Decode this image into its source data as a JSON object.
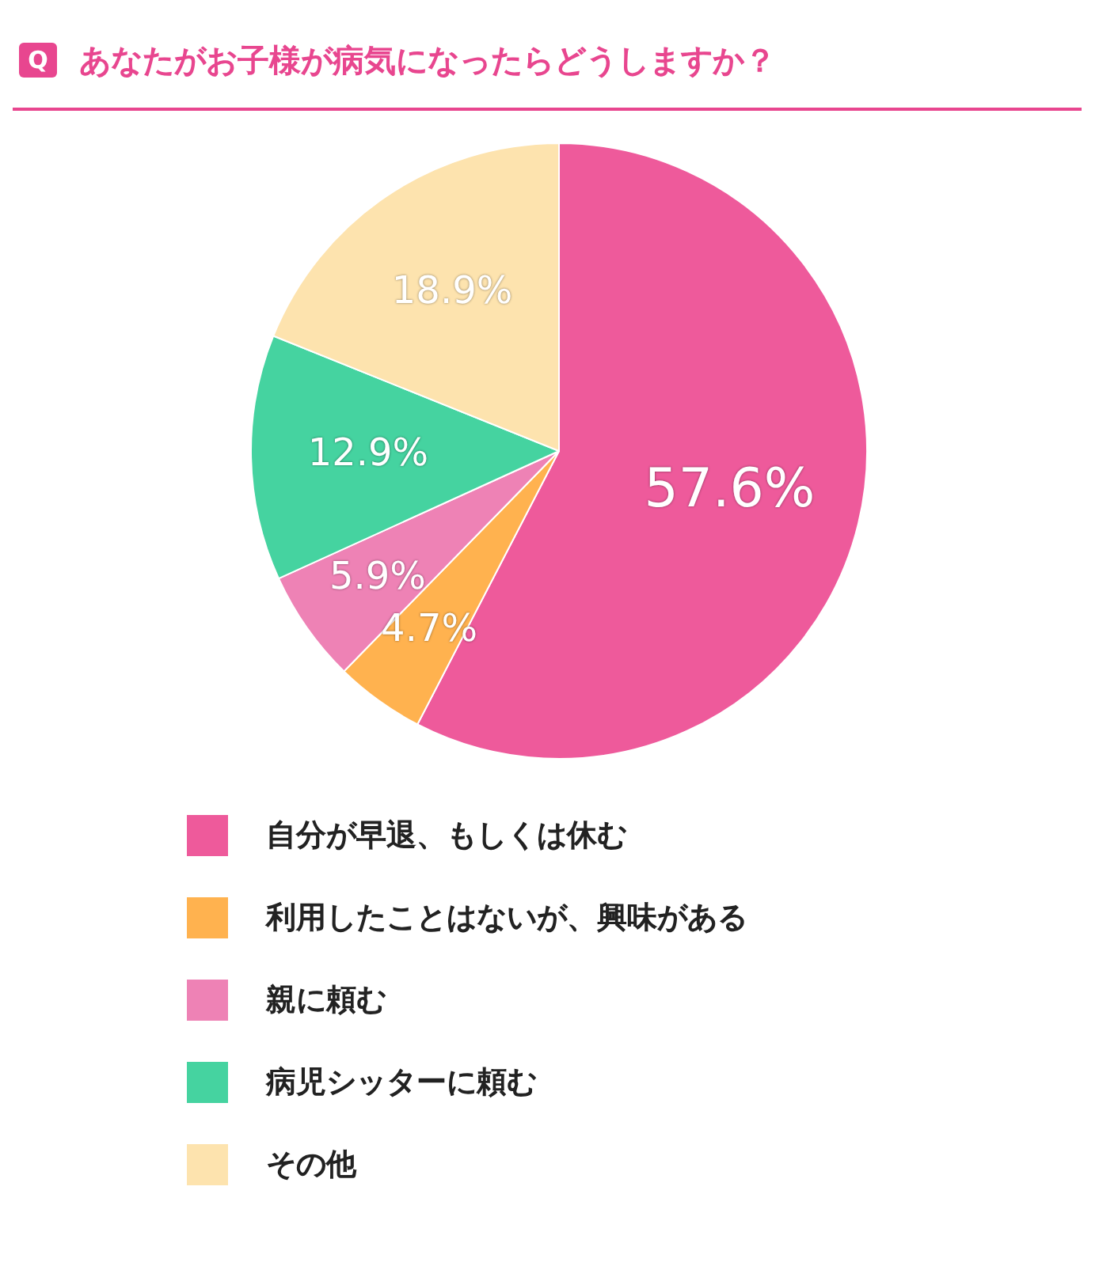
{
  "chart_data": {
    "type": "pie",
    "title": "あなたがお子様が病気になったらどうしますか？",
    "annotations": [
      "Q"
    ],
    "categories": [
      "自分が早退、もしくは休む",
      "利用したことはないが、興味がある",
      "親に頼む",
      "病児シッターに頼む",
      "その他"
    ],
    "values": [
      57.6,
      4.7,
      5.9,
      12.9,
      18.9
    ],
    "colors": [
      "#ee5a9b",
      "#ffb24f",
      "#ee82b5",
      "#45d3a0",
      "#fde3ae"
    ],
    "value_labels": [
      "57.6%",
      "4.7%",
      "5.9%",
      "12.9%",
      "18.9%"
    ],
    "legend": "bottom"
  }
}
